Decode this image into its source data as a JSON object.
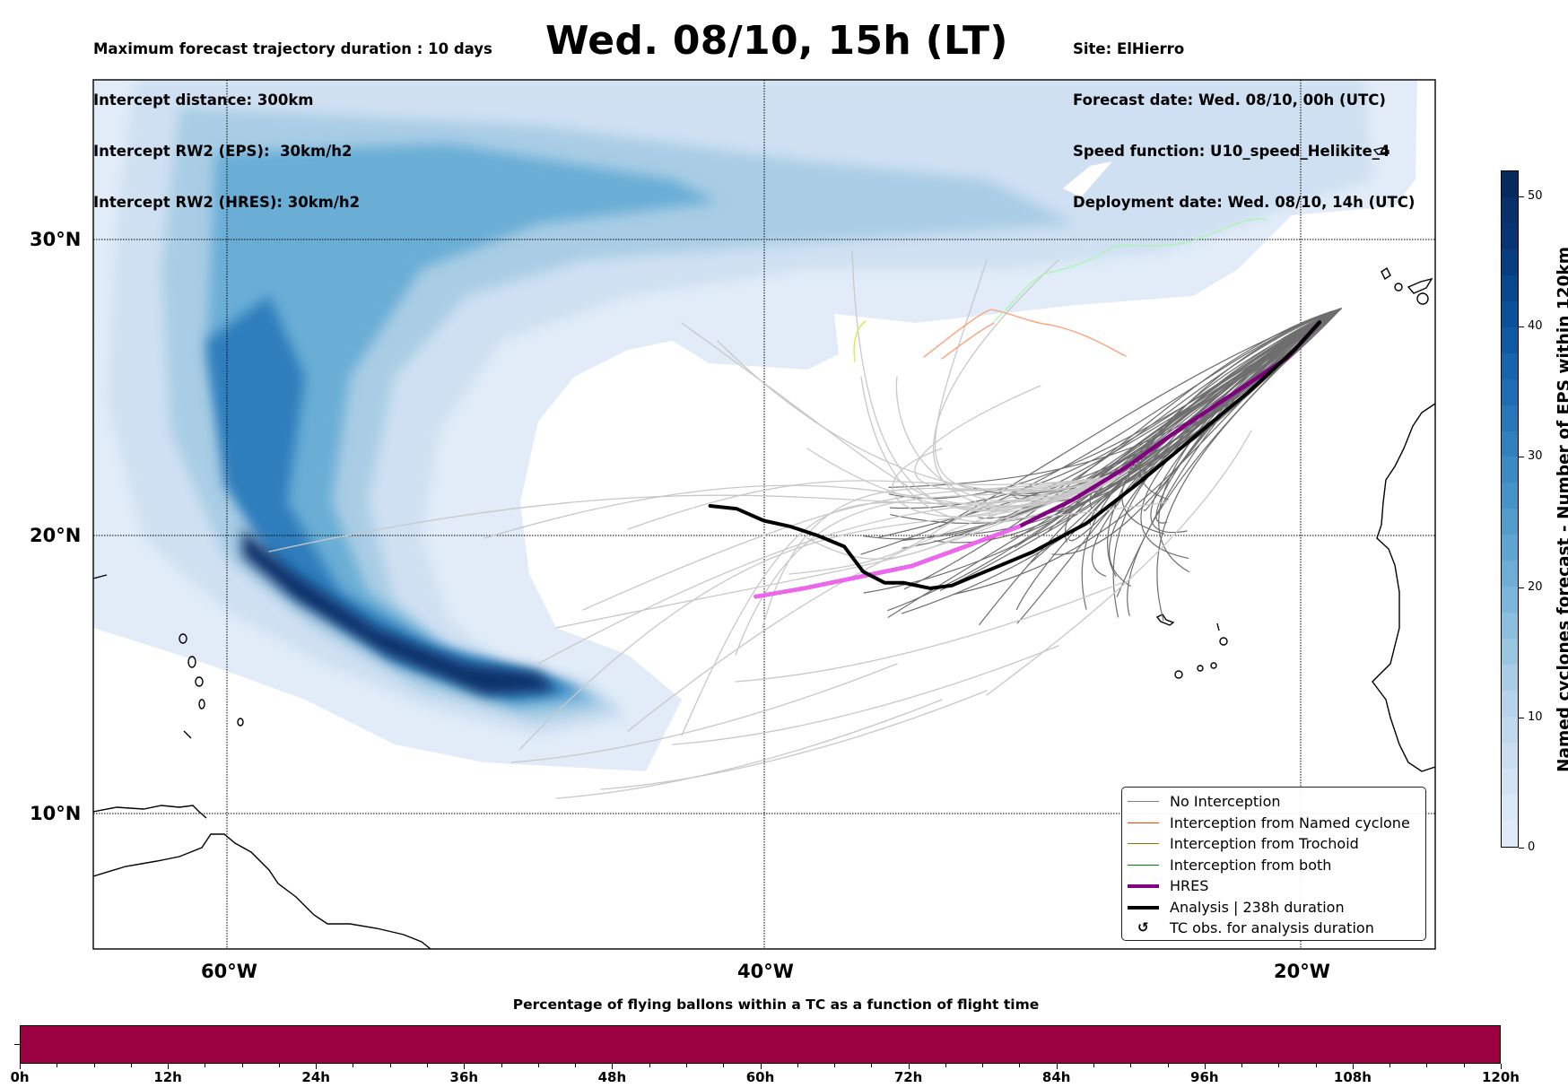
{
  "header": {
    "left_lines": [
      "Maximum forecast trajectory duration : 10 days",
      "Intercept distance: 300km",
      "Intercept RW2 (EPS):  30km/h2",
      "Intercept RW2 (HRES): 30km/h2"
    ],
    "title": "Wed. 08/10, 15h (LT)",
    "right_lines": [
      "Site: ElHierro",
      "Forecast date: Wed. 08/10, 00h (UTC)",
      "Speed function: U10_speed_Helikite_4",
      "Deployment date: Wed. 08/10, 14h (UTC)"
    ]
  },
  "map": {
    "lon_labels": [
      "60°W",
      "40°W",
      "20°W"
    ],
    "lat_labels": [
      "30°N",
      "20°N",
      "10°N"
    ],
    "gridlines": "dotted",
    "legend": {
      "position": "lower-right",
      "items": [
        {
          "label": "No Interception",
          "style": "line",
          "color": "#808080"
        },
        {
          "label": "Interception from Named cyclone",
          "style": "line",
          "color": "#ff4500"
        },
        {
          "label": "Interception from Trochoid",
          "style": "line",
          "color": "#808000"
        },
        {
          "label": "Interception from both",
          "style": "line",
          "color": "#008000"
        },
        {
          "label": "HRES",
          "style": "thick-line",
          "color": "#800080"
        },
        {
          "label": "Analysis | 238h duration",
          "style": "thick-line",
          "color": "#000000"
        },
        {
          "label": "TC obs. for analysis duration",
          "style": "icon",
          "icon": "cyclone-icon",
          "glyph": "↺"
        }
      ]
    },
    "colors": {
      "ensemble_near": "#6e6e6e",
      "ensemble_far": "#c8c8c8",
      "named_cyclone": "#ffa07a",
      "trochoid": "#e6e64d",
      "both": "#98fb98",
      "hres": "#800080",
      "hres_late": "#ee66ee",
      "analysis": "#000000",
      "coast": "#000000"
    }
  },
  "colorbar": {
    "title": "Named cyclones forecast - Number of EPS within 120km",
    "ticks": [
      "0",
      "10",
      "20",
      "30",
      "40",
      "50"
    ],
    "range": [
      0,
      52
    ],
    "colormap": "Blues"
  },
  "bottom_panel": {
    "title": "Percentage of flying ballons within a TC as a function of flight time",
    "x_ticks": [
      "0h",
      "12h",
      "24h",
      "36h",
      "48h",
      "60h",
      "72h",
      "84h",
      "96h",
      "108h",
      "120h"
    ],
    "fill_color": "#9b0040",
    "range_hours": [
      0,
      120
    ]
  },
  "chart_data": {
    "type": "map",
    "title": "Wed. 08/10, 15h (LT)",
    "extent": {
      "lon": [
        -71,
        -10
      ],
      "lat": [
        5,
        35
      ]
    },
    "xlabel": "",
    "ylabel": "",
    "x_ticks": [
      "60°W",
      "40°W",
      "20°W"
    ],
    "y_ticks": [
      "30°N",
      "20°N",
      "10°N"
    ],
    "series": [
      {
        "name": "HRES",
        "lon_lat": [
          [
            -40.3,
            17.8
          ],
          [
            -38.5,
            18.1
          ],
          [
            -36.5,
            18.5
          ],
          [
            -34.5,
            18.9
          ],
          [
            -32.5,
            19.6
          ],
          [
            -30.5,
            20.3
          ],
          [
            -28.5,
            21.2
          ],
          [
            -26.5,
            22.3
          ],
          [
            -24.5,
            23.6
          ],
          [
            -22.5,
            24.8
          ],
          [
            -20.5,
            26.0
          ],
          [
            -19.3,
            27.2
          ]
        ]
      },
      {
        "name": "Analysis | 238h duration",
        "lon_lat": [
          [
            -42,
            21
          ],
          [
            -41,
            20.9
          ],
          [
            -40,
            20.5
          ],
          [
            -39,
            20.3
          ],
          [
            -38,
            20.0
          ],
          [
            -37,
            19.6
          ],
          [
            -36.3,
            18.7
          ],
          [
            -35.5,
            18.3
          ],
          [
            -34.8,
            18.3
          ],
          [
            -33.8,
            18.1
          ],
          [
            -33,
            18.2
          ],
          [
            -31.5,
            18.8
          ],
          [
            -30,
            19.4
          ],
          [
            -28,
            20.4
          ],
          [
            -26,
            21.8
          ],
          [
            -24,
            23.3
          ],
          [
            -22,
            24.8
          ],
          [
            -20.2,
            26.3
          ],
          [
            -19.3,
            27.2
          ]
        ]
      }
    ],
    "colorbar_label": "Named cyclones forecast - Number of EPS within 120km"
  }
}
